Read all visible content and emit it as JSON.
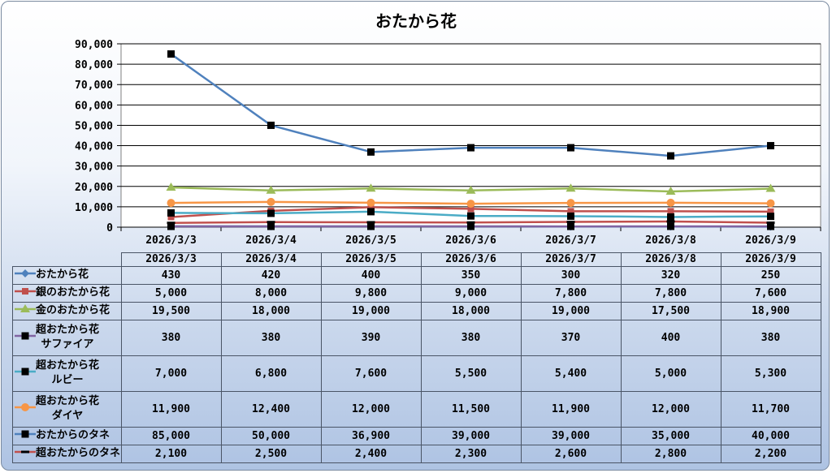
{
  "chart_data": {
    "type": "line",
    "title": "おたから花",
    "categories": [
      "2026/3/3",
      "2026/3/4",
      "2026/3/5",
      "2026/3/6",
      "2026/3/7",
      "2026/3/8",
      "2026/3/9"
    ],
    "ylim": [
      0,
      90000
    ],
    "yticks": [
      "0",
      "10,000",
      "20,000",
      "30,000",
      "40,000",
      "50,000",
      "60,000",
      "70,000",
      "80,000",
      "90,000"
    ],
    "grid": true,
    "legend": "data-table",
    "series": [
      {
        "name": "おたから花",
        "name2": "",
        "color": "#4f81bd",
        "marker": "diamond",
        "values": [
          430,
          420,
          400,
          350,
          300,
          320,
          250
        ],
        "labels": [
          "430",
          "420",
          "400",
          "350",
          "300",
          "320",
          "250"
        ]
      },
      {
        "name": "銀のおたから花",
        "name2": "",
        "color": "#c0504d",
        "marker": "square",
        "values": [
          5000,
          8000,
          9800,
          9000,
          7800,
          7800,
          7600
        ],
        "labels": [
          "5,000",
          "8,000",
          "9,800",
          "9,000",
          "7,800",
          "7,800",
          "7,600"
        ]
      },
      {
        "name": "金のおたから花",
        "name2": "",
        "color": "#9bbb59",
        "marker": "triangle",
        "values": [
          19500,
          18000,
          19000,
          18000,
          19000,
          17500,
          18900
        ],
        "labels": [
          "19,500",
          "18,000",
          "19,000",
          "18,000",
          "19,000",
          "17,500",
          "18,900"
        ]
      },
      {
        "name": "超おたから花",
        "name2": "サファイア",
        "color": "#8064a2",
        "marker": "bsquare",
        "values": [
          380,
          380,
          390,
          380,
          370,
          400,
          380
        ],
        "labels": [
          "380",
          "380",
          "390",
          "380",
          "370",
          "400",
          "380"
        ]
      },
      {
        "name": "超おたから花",
        "name2": "ルビー",
        "color": "#4bacc6",
        "marker": "bsquare",
        "values": [
          7000,
          6800,
          7600,
          5500,
          5400,
          5000,
          5300
        ],
        "labels": [
          "7,000",
          "6,800",
          "7,600",
          "5,500",
          "5,400",
          "5,000",
          "5,300"
        ]
      },
      {
        "name": "超おたから花",
        "name2": "ダイヤ",
        "color": "#f79646",
        "marker": "circle",
        "values": [
          11900,
          12400,
          12000,
          11500,
          11900,
          12000,
          11700
        ],
        "labels": [
          "11,900",
          "12,400",
          "12,000",
          "11,500",
          "11,900",
          "12,000",
          "11,700"
        ]
      },
      {
        "name": "おたからのタネ",
        "name2": "",
        "color": "#4f81bd",
        "marker": "bsquare",
        "values": [
          85000,
          50000,
          36900,
          39000,
          39000,
          35000,
          40000
        ],
        "labels": [
          "85,000",
          "50,000",
          "36,900",
          "39,000",
          "39,000",
          "35,000",
          "40,000"
        ]
      },
      {
        "name": "超おたからのタネ",
        "name2": "",
        "color": "#c0504d",
        "marker": "dash",
        "values": [
          2100,
          2500,
          2400,
          2300,
          2600,
          2800,
          2200
        ],
        "labels": [
          "2,100",
          "2,500",
          "2,400",
          "2,300",
          "2,600",
          "2,800",
          "2,200"
        ]
      }
    ]
  }
}
